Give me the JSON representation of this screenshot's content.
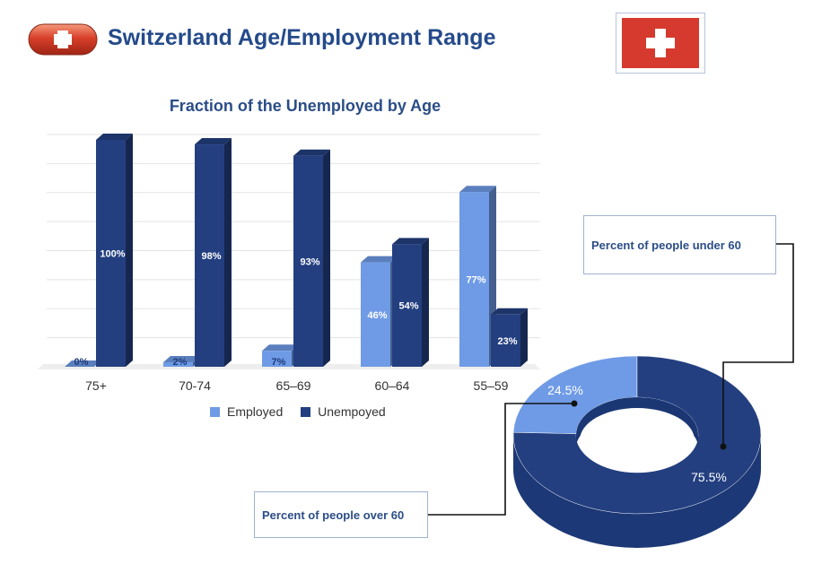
{
  "header": {
    "title": "Switzerland Age/Employment Range"
  },
  "colors": {
    "employed": "#6f9be6",
    "unemployed": "#233f80",
    "title": "#244a8a",
    "flag_red": "#d63a2e"
  },
  "icons": {
    "header_icon": "swiss-cross-pill-icon",
    "flag": "swiss-flag-icon"
  },
  "chart_data": [
    {
      "type": "bar",
      "title": "Fraction of the Unemployed by Age",
      "categories": [
        "75+",
        "70-74",
        "65–69",
        "60–64",
        "55–59"
      ],
      "series": [
        {
          "name": "Employed",
          "values": [
            0,
            2,
            7,
            46,
            77
          ],
          "labels": [
            "0%",
            "2%",
            "7%",
            "46%",
            "77%"
          ]
        },
        {
          "name": "Unempoyed",
          "values": [
            100,
            98,
            93,
            54,
            23
          ],
          "labels": [
            "100%",
            "98%",
            "93%",
            "54%",
            "23%"
          ]
        }
      ],
      "ylim": [
        0,
        100
      ],
      "grid": true,
      "legend": "bottom"
    },
    {
      "type": "pie",
      "style": "donut-3d",
      "slices": [
        {
          "label": "24.5%",
          "value": 24.5,
          "callout": "Percent of people over 60"
        },
        {
          "label": "75.5%",
          "value": 75.5,
          "callout": "Percent of people under 60"
        }
      ]
    }
  ]
}
